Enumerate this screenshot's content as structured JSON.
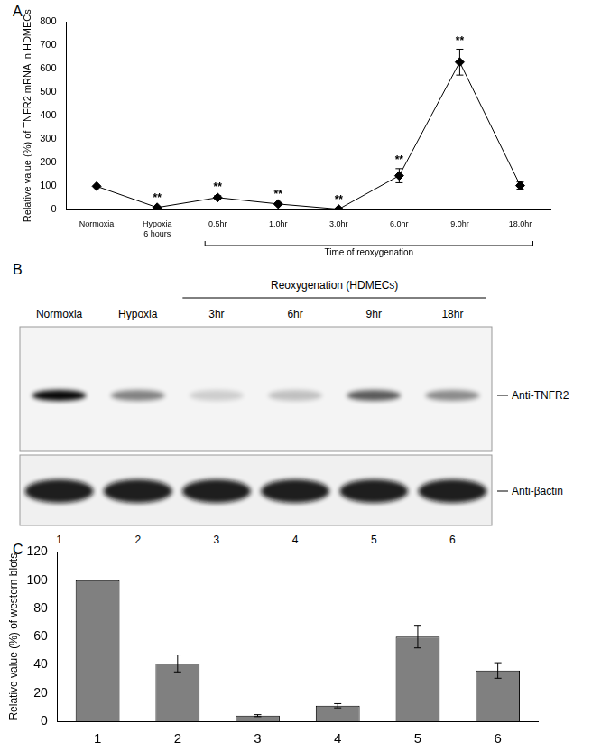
{
  "chart_data": [
    {
      "panel": "A",
      "type": "line",
      "ylabel": "Relative value (%) of TNFR2 mRNA in HDMECs",
      "xlabel": "Time of reoxygenation",
      "categories": [
        "Normoxia",
        [
          "Hypoxia",
          "6 hours"
        ],
        "0.5hr",
        "1.0hr",
        "3.0hr",
        "6.0hr",
        "9.0hr",
        "18.0hr"
      ],
      "values": [
        100,
        10,
        52,
        25,
        3,
        145,
        628,
        103
      ],
      "errors": [
        0,
        3,
        8,
        4,
        2,
        30,
        55,
        15
      ],
      "significance": [
        null,
        "**",
        "**",
        "**",
        "**",
        "**",
        "**",
        null
      ],
      "color": "#000000",
      "marker": "diamond",
      "ylim": [
        0,
        800
      ],
      "yticks": [
        0,
        100,
        200,
        300,
        400,
        500,
        600,
        700,
        800
      ],
      "grid": false
    },
    {
      "panel": "C",
      "type": "bar",
      "ylabel": "Relative value (%) of western blots",
      "categories": [
        1,
        2,
        3,
        4,
        5,
        6
      ],
      "values": [
        100,
        41,
        4,
        11,
        60,
        36
      ],
      "errors": [
        0,
        6,
        0.7,
        1.5,
        8,
        5.5
      ],
      "color": "#808080",
      "ylim": [
        0,
        120
      ],
      "yticks": [
        0,
        20,
        40,
        60,
        80,
        100,
        120
      ],
      "grid": false
    }
  ],
  "blot": {
    "panel": "B",
    "group_label": "Reoxygenation (HDMECs)",
    "lanes": [
      "Normoxia",
      "Hypoxia",
      "3hr",
      "6hr",
      "9hr",
      "18hr"
    ],
    "lane_numbers": [
      1,
      2,
      3,
      4,
      5,
      6
    ],
    "bands": [
      "Anti-TNFR2",
      "Anti-βactin"
    ]
  }
}
